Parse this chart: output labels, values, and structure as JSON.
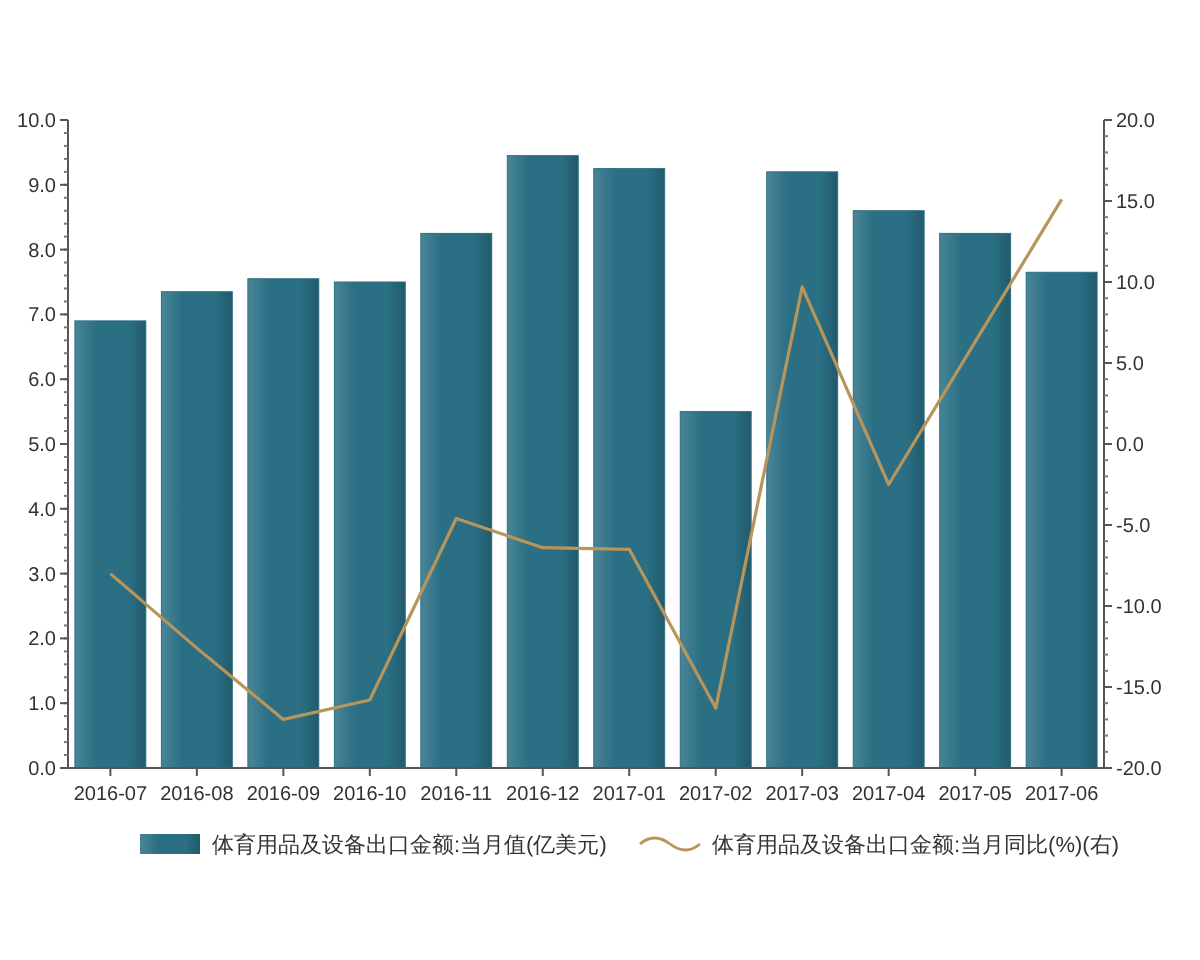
{
  "chart_data": {
    "type": "bar",
    "categories": [
      "2016-07",
      "2016-08",
      "2016-09",
      "2016-10",
      "2016-11",
      "2016-12",
      "2017-01",
      "2017-02",
      "2017-03",
      "2017-04",
      "2017-05",
      "2017-06"
    ],
    "series": [
      {
        "name": "体育用品及设备出口金额:当月值(亿美元)",
        "color": "#2a6f84",
        "values": [
          6.9,
          7.35,
          7.55,
          7.5,
          8.25,
          9.45,
          9.25,
          5.5,
          9.2,
          8.6,
          8.25,
          7.65
        ]
      },
      {
        "name": "体育用品及设备出口金额:当月同比(%)(右)",
        "type": "line",
        "axis": "y2",
        "color": "#b8955a",
        "values": [
          -8,
          -12.6,
          -17,
          -15.8,
          -4.6,
          -6.4,
          -6.5,
          -16.3,
          9.7,
          -2.5,
          6.3,
          15.1
        ]
      }
    ],
    "ylim": [
      0,
      10
    ],
    "yticks": [
      {
        "value": 0,
        "label": "0.0"
      },
      {
        "value": 1,
        "label": "1.0"
      },
      {
        "value": 2,
        "label": "2.0"
      },
      {
        "value": 3,
        "label": "3.0"
      },
      {
        "value": 4,
        "label": "4.0"
      },
      {
        "value": 5,
        "label": "5.0"
      },
      {
        "value": 6,
        "label": "6.0"
      },
      {
        "value": 7,
        "label": "7.0"
      },
      {
        "value": 8,
        "label": "8.0"
      },
      {
        "value": 9,
        "label": "9.0"
      },
      {
        "value": 10,
        "label": "10.0"
      }
    ],
    "y2lim": [
      -20,
      20
    ],
    "y2ticks": [
      {
        "value": -20,
        "label": "-20.0"
      },
      {
        "value": -15,
        "label": "-15.0"
      },
      {
        "value": -10,
        "label": "-10.0"
      },
      {
        "value": -5,
        "label": "-5.0"
      },
      {
        "value": 0,
        "label": "0.0"
      },
      {
        "value": 5,
        "label": "5.0"
      },
      {
        "value": 10,
        "label": "10.0"
      },
      {
        "value": 15,
        "label": "15.0"
      },
      {
        "value": 20,
        "label": "20.0"
      }
    ],
    "legend": "bottom",
    "grid": false
  }
}
